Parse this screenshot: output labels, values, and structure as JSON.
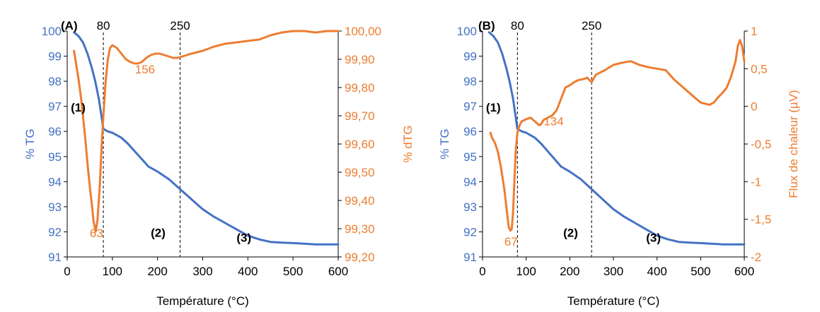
{
  "chart_data": [
    {
      "type": "line",
      "panel_label": "(A)",
      "xlabel": "Température (°C)",
      "ylabel": "% TG",
      "y2label": "% dTG",
      "xlim": [
        0,
        600
      ],
      "ylim": [
        91,
        100
      ],
      "y2lim": [
        99.2,
        100.0
      ],
      "x_ticks": [
        "0",
        "100",
        "200",
        "300",
        "400",
        "500",
        "600"
      ],
      "y_ticks": [
        "91",
        "92",
        "93",
        "94",
        "95",
        "96",
        "97",
        "98",
        "99",
        "100"
      ],
      "y2_ticks": [
        "99,20",
        "99,30",
        "99,40",
        "99,50",
        "99,60",
        "99,70",
        "99,80",
        "99,90",
        "100,00"
      ],
      "colors": {
        "tg": "#4472C4",
        "secondary": "#ED7D31"
      },
      "vlines": [
        {
          "x": 80,
          "label": "80"
        },
        {
          "x": 250,
          "label": "250"
        }
      ],
      "annotations": [
        {
          "text": "(1)",
          "x": 8,
          "y": 96.8,
          "axis": "primary",
          "bold": true
        },
        {
          "text": "(2)",
          "x": 185,
          "y": 91.8,
          "axis": "primary",
          "bold": true
        },
        {
          "text": "(3)",
          "x": 375,
          "y": 91.6,
          "axis": "primary",
          "bold": true
        },
        {
          "text": "63",
          "x": 50,
          "y": 99.27,
          "axis": "secondary",
          "color": "#ED7D31"
        },
        {
          "text": "156",
          "x": 150,
          "y": 99.85,
          "axis": "secondary",
          "color": "#ED7D31"
        }
      ],
      "series": [
        {
          "axis": "primary",
          "color": "#4472C4",
          "x": [
            15,
            25,
            35,
            45,
            55,
            62,
            70,
            80,
            90,
            100,
            110,
            120,
            135,
            150,
            165,
            180,
            200,
            225,
            250,
            275,
            300,
            325,
            350,
            375,
            400,
            425,
            450,
            475,
            500,
            525,
            550,
            575,
            600
          ],
          "y": [
            99.95,
            99.8,
            99.55,
            99.1,
            98.5,
            98.0,
            97.3,
            96.1,
            96.0,
            95.95,
            95.85,
            95.75,
            95.5,
            95.2,
            94.9,
            94.6,
            94.4,
            94.1,
            93.7,
            93.3,
            92.9,
            92.6,
            92.35,
            92.1,
            91.85,
            91.7,
            91.6,
            91.57,
            91.55,
            91.53,
            91.5,
            91.5,
            91.5
          ]
        },
        {
          "axis": "secondary",
          "color": "#ED7D31",
          "x": [
            15,
            20,
            25,
            30,
            35,
            40,
            45,
            50,
            55,
            58,
            63,
            67,
            72,
            77,
            80,
            85,
            90,
            95,
            100,
            110,
            120,
            130,
            140,
            150,
            156,
            165,
            175,
            185,
            195,
            205,
            215,
            225,
            235,
            245,
            255,
            265,
            275,
            300,
            325,
            350,
            375,
            400,
            425,
            450,
            475,
            500,
            525,
            550,
            575,
            600
          ],
          "y": [
            99.93,
            99.88,
            99.83,
            99.77,
            99.7,
            99.62,
            99.53,
            99.45,
            99.38,
            99.33,
            99.29,
            99.33,
            99.45,
            99.62,
            99.7,
            99.82,
            99.9,
            99.94,
            99.95,
            99.94,
            99.92,
            99.9,
            99.89,
            99.885,
            99.885,
            99.89,
            99.905,
            99.915,
            99.92,
            99.92,
            99.915,
            99.91,
            99.905,
            99.905,
            99.91,
            99.915,
            99.92,
            99.93,
            99.945,
            99.955,
            99.96,
            99.965,
            99.97,
            99.985,
            99.995,
            100.0,
            100.0,
            99.995,
            100.0,
            100.0
          ]
        }
      ]
    },
    {
      "type": "line",
      "panel_label": "(B)",
      "xlabel": "Température (°C)",
      "ylabel": "% TG",
      "y2label": "Flux de chaleur (µV)",
      "xlim": [
        0,
        600
      ],
      "ylim": [
        91,
        100
      ],
      "y2lim": [
        -2,
        1
      ],
      "x_ticks": [
        "0",
        "100",
        "200",
        "300",
        "400",
        "500",
        "600"
      ],
      "y_ticks": [
        "91",
        "92",
        "93",
        "94",
        "95",
        "96",
        "97",
        "98",
        "99",
        "100"
      ],
      "y2_ticks": [
        "-2",
        "-1,5",
        "-1",
        "-0,5",
        "0",
        "0,5",
        "1"
      ],
      "colors": {
        "tg": "#4472C4",
        "secondary": "#ED7D31"
      },
      "vlines": [
        {
          "x": 80,
          "label": "80"
        },
        {
          "x": 250,
          "label": "250"
        }
      ],
      "annotations": [
        {
          "text": "(1)",
          "x": 8,
          "y": 96.8,
          "axis": "primary",
          "bold": true
        },
        {
          "text": "(2)",
          "x": 185,
          "y": 91.8,
          "axis": "primary",
          "bold": true
        },
        {
          "text": "(3)",
          "x": 375,
          "y": 91.6,
          "axis": "primary",
          "bold": true
        },
        {
          "text": "67",
          "x": 50,
          "y": -1.85,
          "axis": "secondary",
          "color": "#ED7D31"
        },
        {
          "text": "134",
          "x": 140,
          "y": -0.25,
          "axis": "secondary",
          "color": "#ED7D31"
        }
      ],
      "series": [
        {
          "axis": "primary",
          "color": "#4472C4",
          "x": [
            15,
            25,
            35,
            45,
            55,
            62,
            70,
            80,
            90,
            100,
            110,
            120,
            135,
            150,
            165,
            180,
            200,
            225,
            250,
            275,
            300,
            325,
            350,
            375,
            400,
            425,
            450,
            475,
            500,
            525,
            550,
            575,
            600
          ],
          "y": [
            99.95,
            99.8,
            99.55,
            99.1,
            98.5,
            98.0,
            97.3,
            96.1,
            96.0,
            95.95,
            95.85,
            95.75,
            95.5,
            95.2,
            94.9,
            94.6,
            94.4,
            94.1,
            93.7,
            93.3,
            92.9,
            92.6,
            92.35,
            92.1,
            91.85,
            91.7,
            91.6,
            91.57,
            91.55,
            91.53,
            91.5,
            91.5,
            91.5
          ]
        },
        {
          "axis": "secondary",
          "color": "#ED7D31",
          "x": [
            18,
            22,
            28,
            35,
            42,
            50,
            55,
            60,
            64,
            67,
            70,
            73,
            76,
            80,
            85,
            90,
            100,
            110,
            120,
            130,
            134,
            140,
            150,
            160,
            170,
            180,
            190,
            200,
            210,
            220,
            230,
            240,
            250,
            260,
            270,
            280,
            300,
            320,
            340,
            360,
            380,
            400,
            420,
            440,
            460,
            480,
            500,
            520,
            530,
            540,
            550,
            560,
            570,
            580,
            585,
            590,
            595,
            600
          ],
          "y": [
            -0.35,
            -0.42,
            -0.48,
            -0.6,
            -0.8,
            -1.1,
            -1.35,
            -1.6,
            -1.65,
            -1.63,
            -1.4,
            -1.0,
            -0.6,
            -0.35,
            -0.25,
            -0.2,
            -0.17,
            -0.15,
            -0.2,
            -0.25,
            -0.24,
            -0.18,
            -0.15,
            -0.12,
            -0.05,
            0.1,
            0.25,
            0.28,
            0.32,
            0.35,
            0.36,
            0.38,
            0.32,
            0.42,
            0.45,
            0.48,
            0.55,
            0.58,
            0.6,
            0.55,
            0.52,
            0.5,
            0.48,
            0.35,
            0.25,
            0.15,
            0.05,
            0.02,
            0.05,
            0.12,
            0.18,
            0.25,
            0.4,
            0.6,
            0.8,
            0.88,
            0.8,
            0.6
          ]
        }
      ]
    }
  ]
}
